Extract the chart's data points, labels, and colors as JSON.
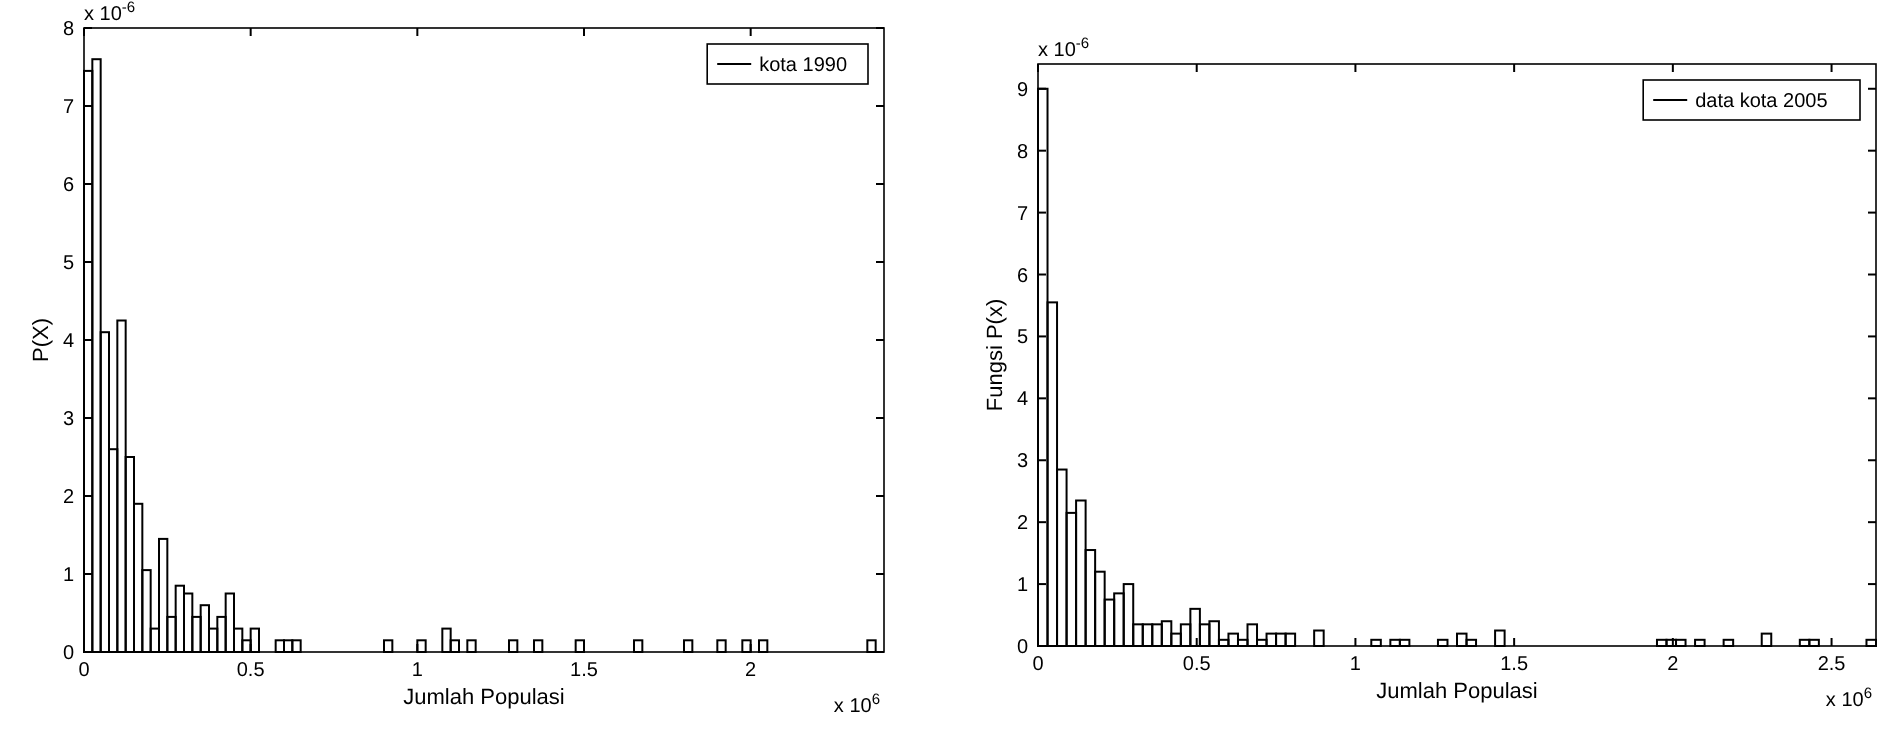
{
  "chart_data": [
    {
      "type": "histogram",
      "xlabel": "Jumlah Populasi",
      "ylabel": "P(X)",
      "legend": "top right",
      "annotations": [
        "x 10$^{-6}$",
        "x 10$^{6}$"
      ],
      "xlim": [
        0,
        2.4
      ],
      "xticks": [
        0,
        0.5,
        1,
        1.5,
        2
      ],
      "ylim": [
        0,
        8
      ],
      "yticks": [
        0,
        1,
        2,
        3,
        4,
        5,
        6,
        7,
        8
      ],
      "grid": false,
      "bins": [
        0,
        0.025,
        0.05,
        0.075,
        0.1,
        0.125,
        0.15,
        0.175,
        0.2,
        0.225,
        0.25,
        0.275,
        0.3,
        0.325,
        0.35,
        0.375,
        0.4,
        0.425,
        0.45,
        0.475,
        0.5,
        0.525,
        0.55,
        0.575,
        0.6,
        0.625,
        0.65,
        0.675,
        0.7,
        0.725,
        0.75,
        0.775,
        0.8,
        0.825,
        0.85,
        0.875,
        0.9,
        0.925,
        0.95,
        0.975,
        1,
        1.025,
        1.05,
        1.075,
        1.1,
        1.125,
        1.15,
        1.175,
        1.2,
        1.225,
        1.25,
        1.275,
        1.3,
        1.325,
        1.35,
        1.375,
        1.4,
        1.425,
        1.45,
        1.475,
        1.5,
        1.525,
        1.55,
        1.575,
        1.6,
        1.625,
        1.65,
        1.675,
        1.7,
        1.725,
        1.75,
        1.775,
        1.8,
        1.825,
        1.85,
        1.875,
        1.9,
        1.925,
        1.95,
        1.975,
        2,
        2.025,
        2.05,
        2.075,
        2.1,
        2.125,
        2.15,
        2.175,
        2.2,
        2.225,
        2.25,
        2.275,
        2.3,
        2.325,
        2.35,
        2.375,
        2.4
      ],
      "series": [
        {
          "name": "kota 1990",
          "color": "#000000",
          "values": [
            7.45,
            7.6,
            4.1,
            2.6,
            4.25,
            2.5,
            1.9,
            1.05,
            0.3,
            1.45,
            0.45,
            0.85,
            0.75,
            0.45,
            0.6,
            0.3,
            0.45,
            0.75,
            0.3,
            0.15,
            0.3,
            0,
            0,
            0.15,
            0.15,
            0.15,
            0,
            0,
            0,
            0,
            0,
            0,
            0,
            0,
            0,
            0,
            0.15,
            0,
            0,
            0,
            0.15,
            0,
            0,
            0.3,
            0.15,
            0,
            0.15,
            0,
            0,
            0,
            0,
            0.15,
            0,
            0,
            0.15,
            0,
            0,
            0,
            0,
            0.15,
            0,
            0,
            0,
            0,
            0,
            0,
            0.15,
            0,
            0,
            0,
            0,
            0,
            0.15,
            0,
            0,
            0,
            0.15,
            0,
            0,
            0.15,
            0,
            0.15,
            0,
            0,
            0,
            0,
            0,
            0,
            0,
            0,
            0,
            0,
            0,
            0,
            0.15,
            0
          ]
        }
      ]
    },
    {
      "type": "histogram",
      "xlabel": "Jumlah Populasi",
      "ylabel": "Fungsi P(x)",
      "legend": "top right",
      "annotations": [
        "x 10$^{-6}$",
        "x 10$^{6}$"
      ],
      "xlim": [
        0,
        2.64
      ],
      "xticks": [
        0,
        0.5,
        1,
        1.5,
        2,
        2.5
      ],
      "ylim": [
        0,
        9.4
      ],
      "yticks": [
        0,
        1,
        2,
        3,
        4,
        5,
        6,
        7,
        8,
        9
      ],
      "grid": false,
      "bins": [
        0,
        0.03,
        0.06,
        0.09,
        0.12,
        0.15,
        0.18,
        0.21,
        0.24,
        0.27,
        0.3,
        0.33,
        0.36,
        0.39,
        0.42,
        0.45,
        0.48,
        0.51,
        0.54,
        0.57,
        0.6,
        0.63,
        0.66,
        0.69,
        0.72,
        0.75,
        0.78,
        0.81,
        0.84,
        0.87,
        0.9,
        0.93,
        0.96,
        0.99,
        1.02,
        1.05,
        1.08,
        1.11,
        1.14,
        1.17,
        1.2,
        1.23,
        1.26,
        1.29,
        1.32,
        1.35,
        1.38,
        1.41,
        1.44,
        1.47,
        1.5,
        1.53,
        1.56,
        1.59,
        1.62,
        1.65,
        1.68,
        1.71,
        1.74,
        1.77,
        1.8,
        1.83,
        1.86,
        1.89,
        1.92,
        1.95,
        1.98,
        2.01,
        2.04,
        2.07,
        2.1,
        2.13,
        2.16,
        2.19,
        2.22,
        2.25,
        2.28,
        2.31,
        2.34,
        2.37,
        2.4,
        2.43,
        2.46,
        2.49,
        2.52,
        2.55,
        2.58,
        2.61,
        2.64
      ],
      "series": [
        {
          "name": "data kota 2005",
          "color": "#000000",
          "values": [
            9,
            5.55,
            2.85,
            2.15,
            2.35,
            1.55,
            1.2,
            0.75,
            0.85,
            1.0,
            0.35,
            0.35,
            0.35,
            0.4,
            0.2,
            0.35,
            0.6,
            0.35,
            0.4,
            0.1,
            0.2,
            0.1,
            0.35,
            0.1,
            0.2,
            0.2,
            0.2,
            0,
            0,
            0.25,
            0,
            0,
            0,
            0,
            0,
            0.1,
            0,
            0.1,
            0.1,
            0,
            0,
            0,
            0.1,
            0,
            0.2,
            0.1,
            0,
            0,
            0.25,
            0,
            0,
            0,
            0,
            0,
            0,
            0,
            0,
            0,
            0,
            0,
            0,
            0,
            0,
            0,
            0,
            0.1,
            0.1,
            0.1,
            0,
            0.1,
            0,
            0,
            0.1,
            0,
            0,
            0,
            0.2,
            0,
            0,
            0,
            0.1,
            0.1,
            0,
            0,
            0,
            0,
            0,
            0.1
          ]
        }
      ]
    }
  ]
}
